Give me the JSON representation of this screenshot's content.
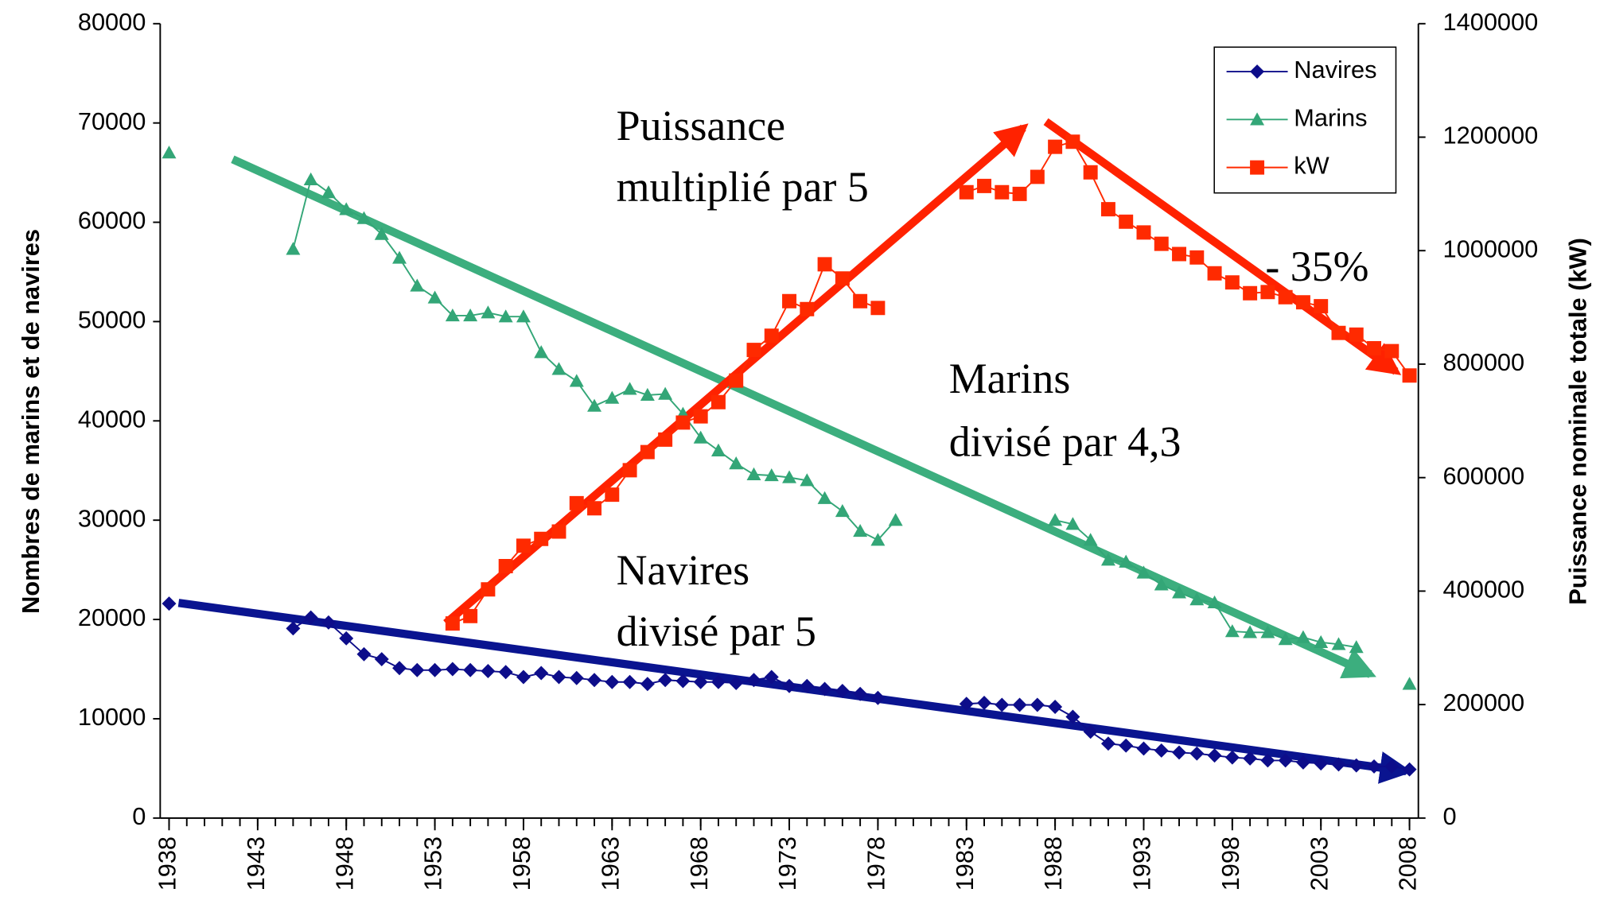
{
  "chart_data": {
    "type": "line",
    "y_label": "Nombres de marins et de navires",
    "y2_label": "Puissance nominale totale (kW)",
    "annotations": [
      "Puissance",
      "multiplié par 5",
      "Marins",
      "divisé par 4,3",
      "Navires",
      "divisé par 5",
      "- 35%"
    ],
    "x": [
      1938,
      1939,
      1940,
      1941,
      1942,
      1943,
      1944,
      1945,
      1946,
      1947,
      1948,
      1949,
      1950,
      1951,
      1952,
      1953,
      1954,
      1955,
      1956,
      1957,
      1958,
      1959,
      1960,
      1961,
      1962,
      1963,
      1964,
      1965,
      1966,
      1967,
      1968,
      1969,
      1970,
      1971,
      1972,
      1973,
      1974,
      1975,
      1976,
      1977,
      1978,
      1979,
      1980,
      1981,
      1982,
      1983,
      1984,
      1985,
      1986,
      1987,
      1988,
      1989,
      1990,
      1991,
      1992,
      1993,
      1994,
      1995,
      1996,
      1997,
      1998,
      1999,
      2000,
      2001,
      2002,
      2003,
      2004,
      2005,
      2006,
      2007,
      2008
    ],
    "xlim": [
      1937.5,
      2008.5
    ],
    "xticks": [
      1938,
      1943,
      1948,
      1953,
      1958,
      1963,
      1968,
      1973,
      1978,
      1983,
      1988,
      1993,
      1998,
      2003,
      2008
    ],
    "ylim": [
      0,
      80000
    ],
    "yticks": [
      0,
      10000,
      20000,
      30000,
      40000,
      50000,
      60000,
      70000,
      80000
    ],
    "y2lim": [
      0,
      1400000
    ],
    "y2ticks": [
      0,
      200000,
      400000,
      600000,
      800000,
      1000000,
      1200000,
      1400000
    ],
    "grid": false,
    "legend": "top-right",
    "series": [
      {
        "name": "Navires",
        "color": "#0d0d8a",
        "marker": "diamond",
        "values": [
          21600,
          null,
          null,
          null,
          null,
          null,
          null,
          19100,
          20200,
          19700,
          18100,
          16500,
          16000,
          15100,
          14900,
          14900,
          15000,
          14900,
          14800,
          14700,
          14200,
          14600,
          14200,
          14100,
          13900,
          13700,
          13700,
          13500,
          13900,
          13800,
          13700,
          13700,
          13600,
          13900,
          14200,
          13300,
          13300,
          13000,
          12800,
          12500,
          12100,
          null,
          null,
          null,
          null,
          11500,
          11600,
          11400,
          11400,
          11400,
          11200,
          10200,
          8700,
          7500,
          7300,
          7000,
          6800,
          6600,
          6500,
          6300,
          6100,
          6000,
          5800,
          5800,
          5600,
          5500,
          5400,
          5300,
          5200,
          5200,
          4900
        ]
      },
      {
        "name": "Marins",
        "color": "#33a677",
        "marker": "triangle",
        "values": [
          67000,
          null,
          null,
          null,
          null,
          null,
          null,
          57300,
          64300,
          63000,
          61300,
          60400,
          58800,
          56400,
          53600,
          52400,
          50600,
          50600,
          50900,
          50500,
          50500,
          46900,
          45200,
          44000,
          41500,
          42300,
          43200,
          42600,
          42700,
          40700,
          38300,
          37000,
          35700,
          34600,
          34500,
          34300,
          34000,
          32200,
          30900,
          28900,
          28000,
          30000,
          null,
          null,
          null,
          null,
          null,
          null,
          null,
          null,
          30000,
          29600,
          28000,
          26000,
          25800,
          24700,
          23500,
          22700,
          22000,
          21700,
          18800,
          18700,
          18700,
          18000,
          18200,
          17700,
          17500,
          17200,
          null,
          null,
          13500
        ]
      },
      {
        "name": "kW",
        "color": "#ff2a00",
        "marker": "square",
        "axis": "y2",
        "values": [
          null,
          null,
          null,
          null,
          null,
          null,
          null,
          null,
          null,
          null,
          null,
          null,
          null,
          null,
          null,
          null,
          343000,
          356000,
          403000,
          444000,
          480000,
          492000,
          505000,
          555000,
          546000,
          570000,
          613000,
          645000,
          667000,
          697000,
          708000,
          733000,
          771000,
          825000,
          850000,
          911000,
          897000,
          976000,
          951000,
          911000,
          899000,
          null,
          null,
          null,
          null,
          1103000,
          1114000,
          1103000,
          1100000,
          1130000,
          1183000,
          1192000,
          1138000,
          1073000,
          1051000,
          1032000,
          1012000,
          994000,
          988000,
          960000,
          944000,
          925000,
          927000,
          918000,
          909000,
          902000,
          855000,
          852000,
          828000,
          823000,
          780000
        ]
      }
    ]
  }
}
